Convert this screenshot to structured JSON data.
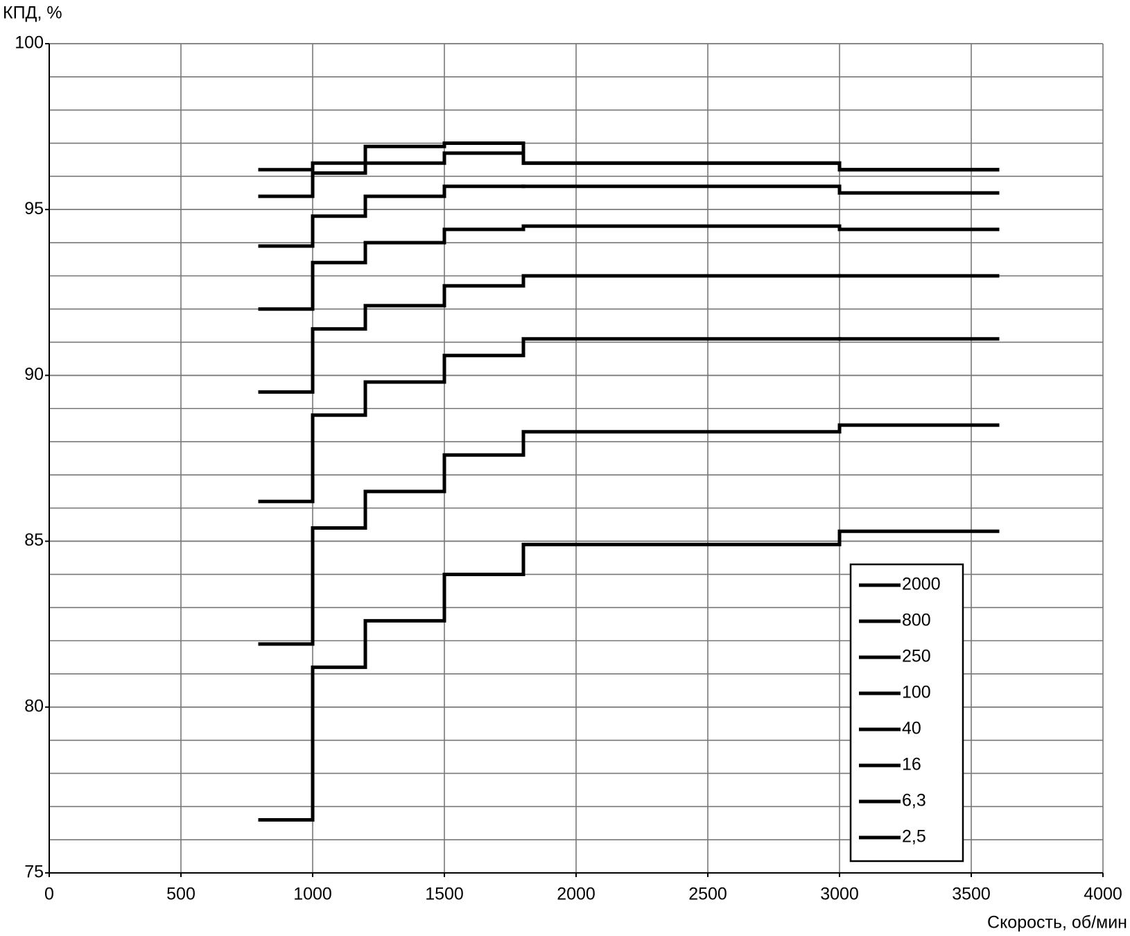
{
  "chart_data": {
    "type": "line",
    "drawstyle": "steps-post",
    "y_label": "КПД, %",
    "x_label": "Скорость, об/мин",
    "x": [
      800,
      1000,
      1200,
      1500,
      1800,
      3000,
      3600
    ],
    "series": [
      {
        "name": "2000",
        "color": "#000000",
        "values": [
          95.4,
          96.1,
          96.9,
          97.0,
          96.4,
          96.2,
          96.2
        ]
      },
      {
        "name": "800",
        "color": "#000000",
        "values": [
          96.2,
          96.4,
          96.4,
          96.7,
          96.4,
          96.2,
          96.2
        ]
      },
      {
        "name": "250",
        "color": "#000000",
        "values": [
          93.9,
          94.8,
          95.4,
          95.7,
          95.7,
          95.5,
          95.5
        ]
      },
      {
        "name": "100",
        "color": "#000000",
        "values": [
          92.0,
          93.4,
          94.0,
          94.4,
          94.5,
          94.4,
          94.4
        ]
      },
      {
        "name": "40",
        "color": "#000000",
        "values": [
          89.5,
          91.4,
          92.1,
          92.7,
          93.0,
          93.0,
          93.0
        ]
      },
      {
        "name": "16",
        "color": "#000000",
        "values": [
          86.2,
          88.8,
          89.8,
          90.6,
          91.1,
          91.1,
          91.1
        ]
      },
      {
        "name": "6,3",
        "color": "#000000",
        "values": [
          81.9,
          85.4,
          86.5,
          87.6,
          88.3,
          88.5,
          88.5
        ]
      },
      {
        "name": "2,5",
        "color": "#000000",
        "values": [
          76.6,
          81.2,
          82.6,
          84.0,
          84.9,
          85.3,
          85.3
        ]
      }
    ],
    "xlim": [
      0,
      4000
    ],
    "ylim": [
      75,
      100
    ],
    "xticks": [
      0,
      500,
      1000,
      1500,
      2000,
      2500,
      3000,
      3500,
      4000
    ],
    "yticks": [
      75,
      80,
      85,
      90,
      95,
      100
    ],
    "grid": true,
    "minor_grid_step": 1,
    "legend": "lower right"
  }
}
